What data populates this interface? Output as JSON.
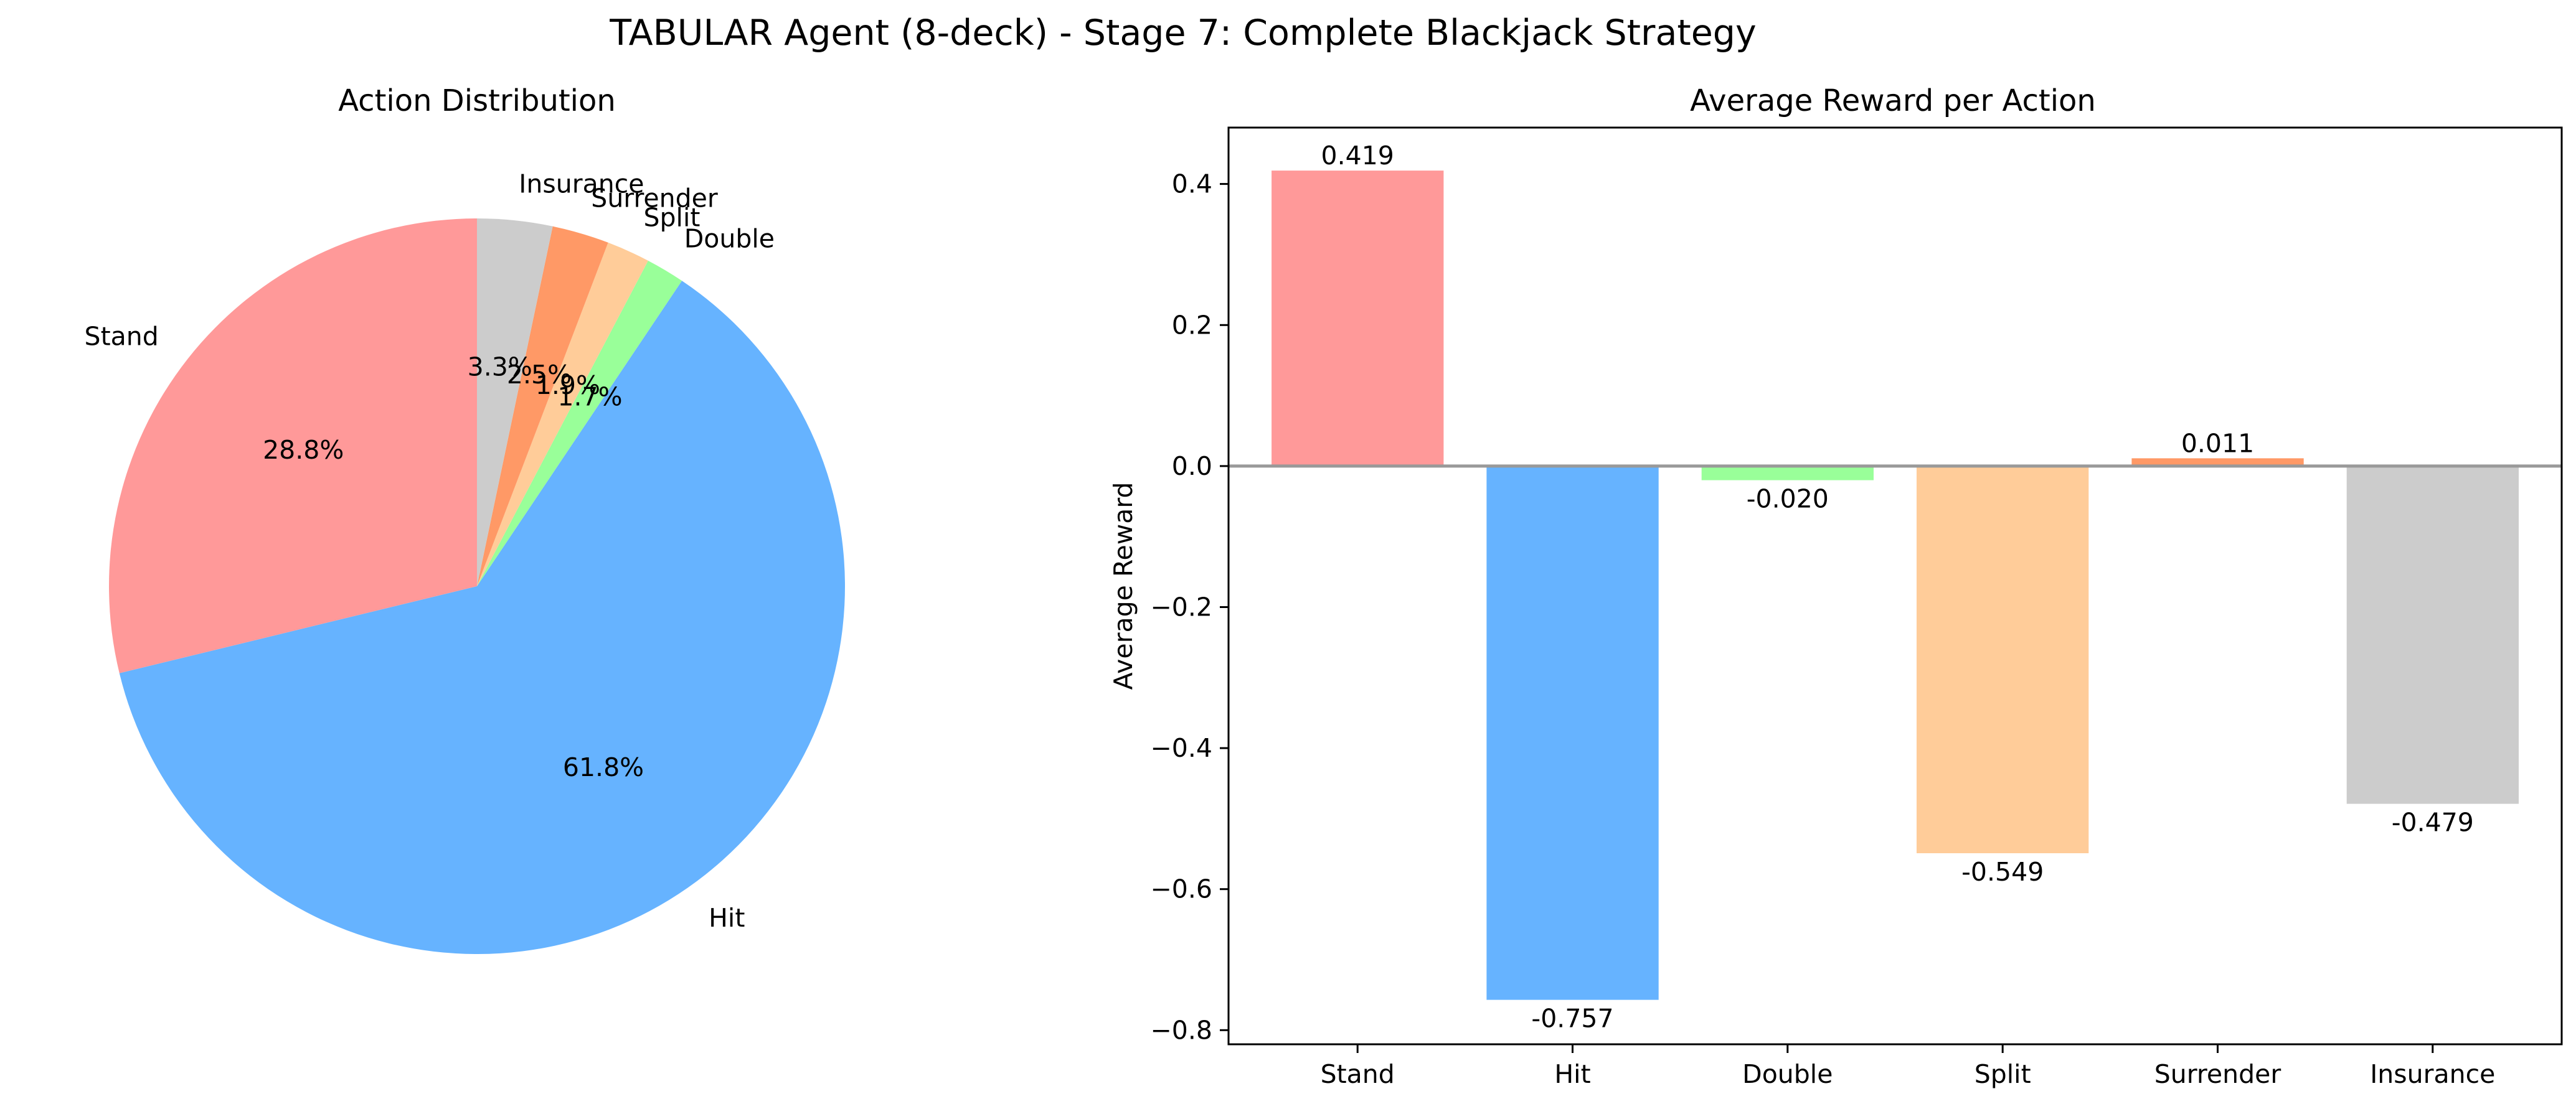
{
  "figure": {
    "title": "TABULAR Agent (8-deck) - Stage 7: Complete Blackjack Strategy"
  },
  "chart_data": [
    {
      "type": "pie",
      "title": "Action Distribution",
      "start_angle_deg": 90,
      "direction": "counterclockwise",
      "slices": [
        {
          "label": "Stand",
          "value": 28.8,
          "pct_label": "28.8%",
          "color": "#ff9999"
        },
        {
          "label": "Hit",
          "value": 61.8,
          "pct_label": "61.8%",
          "color": "#66b3ff"
        },
        {
          "label": "Double",
          "value": 1.7,
          "pct_label": "1.7%",
          "color": "#99ff99"
        },
        {
          "label": "Split",
          "value": 1.9,
          "pct_label": "1.9%",
          "color": "#ffcc99"
        },
        {
          "label": "Surrender",
          "value": 2.5,
          "pct_label": "2.5%",
          "color": "#ff9966"
        },
        {
          "label": "Insurance",
          "value": 3.3,
          "pct_label": "3.3%",
          "color": "#cccccc"
        }
      ]
    },
    {
      "type": "bar",
      "title": "Average Reward per Action",
      "xlabel": "",
      "ylabel": "Average Reward",
      "ylim": [
        -0.82,
        0.48
      ],
      "yticks": [
        0.4,
        0.2,
        0.0,
        -0.2,
        -0.4,
        -0.6,
        -0.8
      ],
      "ytick_labels": [
        "0.4",
        "0.2",
        "0.0",
        "−0.2",
        "−0.4",
        "−0.6",
        "−0.8"
      ],
      "grid": false,
      "zero_line": true,
      "categories": [
        "Stand",
        "Hit",
        "Double",
        "Split",
        "Surrender",
        "Insurance"
      ],
      "values": [
        0.419,
        -0.757,
        -0.02,
        -0.549,
        0.011,
        -0.479
      ],
      "value_labels": [
        "0.419",
        "-0.757",
        "-0.020",
        "-0.549",
        "0.011",
        "-0.479"
      ],
      "colors": [
        "#ff9999",
        "#66b3ff",
        "#99ff99",
        "#ffcc99",
        "#ff9966",
        "#cccccc"
      ]
    }
  ]
}
